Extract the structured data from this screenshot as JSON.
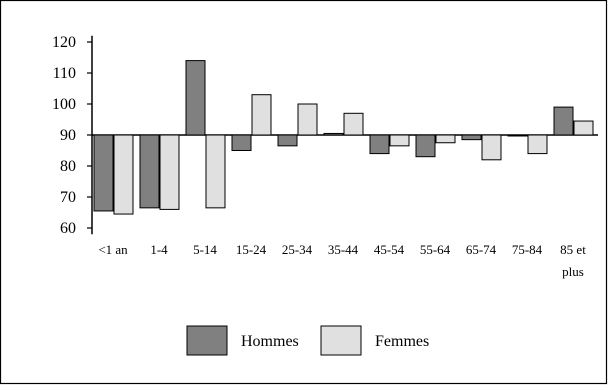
{
  "chart_data": {
    "type": "bar",
    "title": "",
    "xlabel": "",
    "ylabel": "",
    "baseline": 90,
    "ylim": [
      58,
      122
    ],
    "yticks": [
      {
        "label": "120",
        "value": 120
      },
      {
        "label": "110",
        "value": 110
      },
      {
        "label": "100",
        "value": 100
      },
      {
        "label": "90",
        "value": 90
      },
      {
        "label": "80",
        "value": 80
      },
      {
        "label": "70",
        "value": 70
      },
      {
        "label": "60",
        "value": 60
      }
    ],
    "categories": [
      "<1 an",
      "1-4",
      "5-14",
      "15-24",
      "25-34",
      "35-44",
      "45-54",
      "55-64",
      "65-74",
      "75-84",
      "85 et plus"
    ],
    "category_lines": [
      [
        "<1 an"
      ],
      [
        "1-4"
      ],
      [
        "5-14"
      ],
      [
        "15-24"
      ],
      [
        "25-34"
      ],
      [
        "35-44"
      ],
      [
        "45-54"
      ],
      [
        "55-64"
      ],
      [
        "65-74"
      ],
      [
        "75-84"
      ],
      [
        "85 et",
        "plus"
      ]
    ],
    "series": [
      {
        "name": "Hommes",
        "color": "#808080",
        "values": [
          65.5,
          66.5,
          114,
          85,
          86.5,
          90.5,
          84,
          83,
          88.5,
          90,
          99
        ]
      },
      {
        "name": "Femmes",
        "color": "#e0e0e0",
        "values": [
          64.5,
          66,
          66.5,
          103,
          100,
          97,
          86.5,
          87.5,
          82,
          84,
          94.5
        ]
      }
    ],
    "legend_position": "bottom-center",
    "grid": false
  }
}
